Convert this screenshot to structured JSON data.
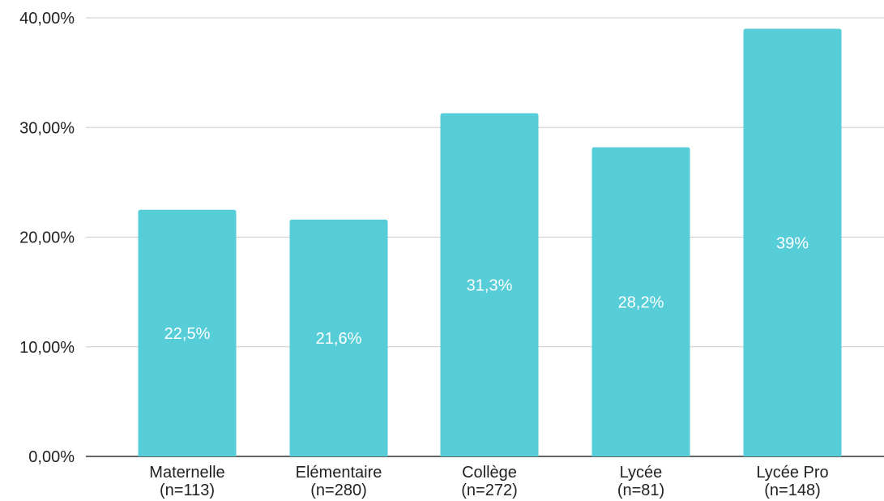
{
  "chart_data": {
    "type": "bar",
    "categories": [
      {
        "line1": "Maternelle",
        "line2": "(n=113)"
      },
      {
        "line1": "Elémentaire",
        "line2": "(n=280)"
      },
      {
        "line1": "Collège",
        "line2": "(n=272)"
      },
      {
        "line1": "Lycée",
        "line2": "(n=81)"
      },
      {
        "line1": "Lycée Pro",
        "line2": "(n=148)"
      }
    ],
    "values": [
      22.5,
      21.6,
      31.3,
      28.2,
      39
    ],
    "data_labels": [
      "22,5%",
      "21,6%",
      "31,3%",
      "28,2%",
      "39%"
    ],
    "y_ticks": [
      {
        "value": 0,
        "label": "0,00%"
      },
      {
        "value": 10,
        "label": "10,00%"
      },
      {
        "value": 20,
        "label": "20,00%"
      },
      {
        "value": 30,
        "label": "30,00%"
      },
      {
        "value": 40,
        "label": "40,00%"
      }
    ],
    "ylim": [
      0,
      40
    ],
    "grid": true,
    "colors": {
      "bar": "#57cdd8",
      "grid": "#cccccc",
      "axis": "#333333",
      "data_label": "#ffffff"
    }
  }
}
